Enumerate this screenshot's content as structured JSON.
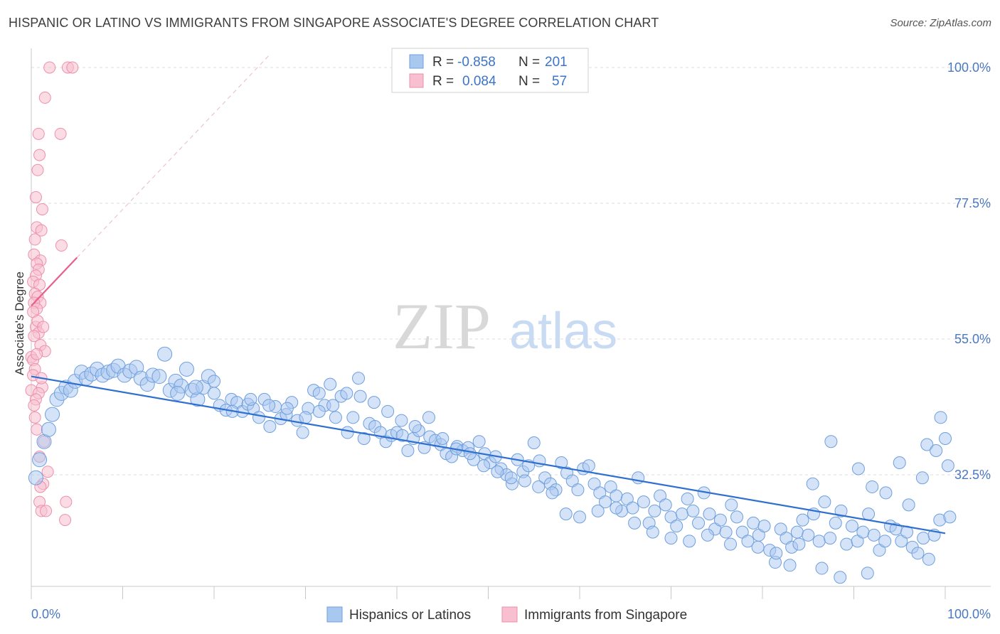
{
  "title": "HISPANIC OR LATINO VS IMMIGRANTS FROM SINGAPORE ASSOCIATE'S DEGREE CORRELATION CHART",
  "source": "Source: ZipAtlas.com",
  "watermark": {
    "zip": "ZIP",
    "atlas": "atlas"
  },
  "colors": {
    "blue_fill": "#a9c8f0",
    "blue_stroke": "#6f9fde",
    "blue_line": "#2f6fd0",
    "pink_fill": "#f7bfd0",
    "pink_stroke": "#ee8fab",
    "pink_line": "#e8608a",
    "grid": "#dcdcdc",
    "tick_label": "#4a78c2"
  },
  "legend": {
    "rows": [
      {
        "r_label": "R =",
        "r_value": "-0.858",
        "n_label": "N =",
        "n_value": "201"
      },
      {
        "r_label": "R =",
        "r_value": "0.084",
        "n_label": "N =",
        "n_value": "57"
      }
    ]
  },
  "chart_data": {
    "type": "scatter",
    "ylabel": "Associate's Degree",
    "xlim": [
      0,
      100
    ],
    "ylim": [
      14,
      102
    ],
    "x_tick_labels": {
      "left": "0.0%",
      "right": "100.0%"
    },
    "y_ticks": [
      {
        "value": 100,
        "label": "100.0%"
      },
      {
        "value": 77.5,
        "label": "77.5%"
      },
      {
        "value": 55,
        "label": "55.0%"
      },
      {
        "value": 32.5,
        "label": "32.5%"
      }
    ],
    "grid": true,
    "legend_position": "top-center",
    "series": [
      {
        "name": "Hispanics or Latinos",
        "color": "#a9c8f0",
        "trend": {
          "x": [
            0,
            100
          ],
          "y": [
            48.8,
            22.8
          ]
        },
        "points": [
          [
            0.5,
            32.0
          ],
          [
            0.9,
            35.0
          ],
          [
            1.4,
            38.0
          ],
          [
            1.9,
            40.0
          ],
          [
            2.3,
            42.5
          ],
          [
            2.8,
            45.0
          ],
          [
            3.3,
            46.0
          ],
          [
            3.8,
            47.0
          ],
          [
            4.3,
            46.5
          ],
          [
            4.8,
            48.0
          ],
          [
            5.5,
            49.5
          ],
          [
            6.0,
            48.5
          ],
          [
            6.6,
            49.2
          ],
          [
            7.2,
            50.0
          ],
          [
            7.8,
            49.0
          ],
          [
            8.4,
            49.5
          ],
          [
            9.0,
            49.8
          ],
          [
            9.5,
            50.5
          ],
          [
            10.2,
            49.0
          ],
          [
            10.8,
            49.7
          ],
          [
            11.5,
            50.3
          ],
          [
            12.0,
            48.5
          ],
          [
            12.7,
            47.5
          ],
          [
            13.3,
            49.0
          ],
          [
            14.0,
            48.8
          ],
          [
            14.6,
            52.5
          ],
          [
            15.2,
            46.5
          ],
          [
            15.8,
            48.0
          ],
          [
            16.4,
            47.2
          ],
          [
            17.0,
            50.0
          ],
          [
            17.6,
            46.5
          ],
          [
            18.2,
            45.0
          ],
          [
            18.8,
            47.0
          ],
          [
            19.4,
            48.8
          ],
          [
            20.0,
            48.0
          ],
          [
            20.6,
            44.0
          ],
          [
            21.3,
            43.2
          ],
          [
            21.9,
            45.0
          ],
          [
            22.5,
            44.5
          ],
          [
            23.1,
            43.0
          ],
          [
            23.7,
            44.2
          ],
          [
            24.3,
            43.5
          ],
          [
            24.9,
            42.0
          ],
          [
            25.5,
            45.0
          ],
          [
            26.1,
            40.5
          ],
          [
            26.7,
            43.8
          ],
          [
            27.3,
            41.8
          ],
          [
            27.9,
            42.5
          ],
          [
            28.5,
            44.5
          ],
          [
            29.1,
            41.5
          ],
          [
            29.7,
            39.5
          ],
          [
            30.3,
            43.5
          ],
          [
            30.9,
            46.5
          ],
          [
            31.5,
            46.0
          ],
          [
            32.1,
            44.0
          ],
          [
            32.7,
            47.5
          ],
          [
            33.3,
            42.0
          ],
          [
            33.9,
            45.5
          ],
          [
            34.6,
            39.5
          ],
          [
            35.2,
            42.0
          ],
          [
            35.8,
            48.5
          ],
          [
            36.4,
            38.5
          ],
          [
            37.0,
            41.0
          ],
          [
            37.6,
            40.5
          ],
          [
            38.2,
            39.5
          ],
          [
            38.8,
            38.0
          ],
          [
            39.4,
            39.0
          ],
          [
            40.0,
            39.5
          ],
          [
            40.6,
            39.0
          ],
          [
            41.2,
            36.5
          ],
          [
            41.8,
            38.5
          ],
          [
            42.4,
            39.8
          ],
          [
            43.0,
            37.0
          ],
          [
            43.6,
            38.8
          ],
          [
            44.2,
            38.2
          ],
          [
            44.8,
            37.5
          ],
          [
            45.4,
            36.0
          ],
          [
            46.0,
            35.5
          ],
          [
            46.6,
            37.2
          ],
          [
            47.2,
            36.5
          ],
          [
            47.8,
            37.0
          ],
          [
            48.4,
            35.0
          ],
          [
            49.0,
            38.0
          ],
          [
            49.6,
            36.0
          ],
          [
            50.2,
            34.5
          ],
          [
            50.8,
            35.5
          ],
          [
            51.4,
            33.5
          ],
          [
            52.0,
            32.5
          ],
          [
            52.6,
            31.0
          ],
          [
            53.2,
            35.0
          ],
          [
            53.8,
            33.0
          ],
          [
            54.4,
            34.0
          ],
          [
            55.0,
            37.8
          ],
          [
            55.6,
            34.8
          ],
          [
            56.2,
            32.0
          ],
          [
            56.8,
            31.0
          ],
          [
            57.4,
            30.0
          ],
          [
            58.0,
            34.5
          ],
          [
            58.6,
            32.8
          ],
          [
            59.2,
            31.5
          ],
          [
            59.8,
            30.0
          ],
          [
            60.4,
            33.5
          ],
          [
            61.0,
            34.0
          ],
          [
            61.6,
            31.0
          ],
          [
            62.2,
            29.5
          ],
          [
            62.8,
            28.0
          ],
          [
            63.4,
            30.5
          ],
          [
            64.0,
            29.0
          ],
          [
            64.6,
            26.5
          ],
          [
            65.2,
            28.5
          ],
          [
            65.8,
            27.0
          ],
          [
            66.4,
            32.0
          ],
          [
            67.0,
            28.0
          ],
          [
            67.6,
            24.5
          ],
          [
            68.2,
            26.5
          ],
          [
            68.8,
            29.0
          ],
          [
            69.4,
            27.5
          ],
          [
            70.0,
            25.5
          ],
          [
            70.6,
            24.0
          ],
          [
            71.2,
            26.0
          ],
          [
            71.8,
            28.5
          ],
          [
            72.4,
            26.5
          ],
          [
            73.0,
            24.5
          ],
          [
            73.6,
            29.5
          ],
          [
            74.2,
            26.0
          ],
          [
            74.8,
            23.5
          ],
          [
            75.4,
            25.0
          ],
          [
            76.0,
            23.0
          ],
          [
            76.6,
            27.5
          ],
          [
            77.2,
            25.5
          ],
          [
            77.8,
            23.0
          ],
          [
            78.4,
            21.5
          ],
          [
            79.0,
            24.5
          ],
          [
            79.6,
            22.5
          ],
          [
            80.2,
            24.0
          ],
          [
            80.8,
            20.0
          ],
          [
            81.4,
            18.0
          ],
          [
            82.0,
            23.5
          ],
          [
            82.6,
            22.0
          ],
          [
            83.2,
            20.5
          ],
          [
            83.8,
            23.0
          ],
          [
            84.4,
            25.0
          ],
          [
            85.0,
            22.5
          ],
          [
            85.6,
            26.0
          ],
          [
            86.2,
            21.5
          ],
          [
            86.8,
            28.0
          ],
          [
            87.4,
            22.0
          ],
          [
            88.0,
            24.5
          ],
          [
            88.6,
            26.5
          ],
          [
            89.2,
            21.0
          ],
          [
            89.8,
            24.0
          ],
          [
            90.4,
            21.5
          ],
          [
            91.0,
            23.0
          ],
          [
            91.6,
            26.0
          ],
          [
            92.2,
            22.5
          ],
          [
            92.8,
            20.0
          ],
          [
            93.4,
            21.5
          ],
          [
            94.0,
            24.0
          ],
          [
            94.6,
            23.5
          ],
          [
            95.2,
            21.5
          ],
          [
            95.8,
            23.0
          ],
          [
            96.4,
            20.5
          ],
          [
            97.0,
            19.5
          ],
          [
            97.6,
            22.0
          ],
          [
            98.2,
            18.5
          ],
          [
            98.8,
            22.5
          ],
          [
            99.4,
            25.0
          ],
          [
            85.5,
            31.0
          ],
          [
            87.5,
            38.0
          ],
          [
            90.5,
            33.5
          ],
          [
            92.0,
            30.5
          ],
          [
            93.5,
            29.5
          ],
          [
            95.0,
            34.5
          ],
          [
            96.0,
            27.5
          ],
          [
            97.5,
            32.0
          ],
          [
            98.0,
            37.5
          ],
          [
            99.0,
            36.5
          ],
          [
            99.5,
            42.0
          ],
          [
            100.0,
            38.5
          ],
          [
            100.3,
            34.0
          ],
          [
            100.5,
            25.5
          ],
          [
            86.5,
            17.0
          ],
          [
            88.5,
            15.5
          ],
          [
            91.5,
            16.2
          ],
          [
            84.0,
            21.0
          ],
          [
            83.0,
            17.5
          ],
          [
            81.5,
            19.5
          ],
          [
            79.5,
            20.5
          ],
          [
            76.5,
            21.0
          ],
          [
            74.0,
            22.5
          ],
          [
            72.0,
            21.5
          ],
          [
            70.0,
            22.0
          ],
          [
            68.0,
            23.0
          ],
          [
            66.0,
            24.5
          ],
          [
            64.0,
            27.0
          ],
          [
            62.0,
            26.5
          ],
          [
            60.0,
            25.5
          ],
          [
            58.5,
            26.0
          ],
          [
            57.0,
            29.5
          ],
          [
            55.5,
            30.5
          ],
          [
            54.0,
            31.5
          ],
          [
            52.5,
            32.0
          ],
          [
            51.0,
            33.0
          ],
          [
            49.5,
            34.0
          ],
          [
            48.0,
            36.0
          ],
          [
            46.5,
            36.8
          ],
          [
            45.0,
            38.5
          ],
          [
            43.5,
            42.0
          ],
          [
            42.0,
            40.5
          ],
          [
            40.5,
            41.5
          ],
          [
            39.0,
            43.0
          ],
          [
            37.5,
            44.5
          ],
          [
            36.0,
            45.5
          ],
          [
            34.5,
            46.0
          ],
          [
            33.0,
            44.0
          ],
          [
            31.5,
            43.0
          ],
          [
            30.0,
            42.0
          ],
          [
            28.0,
            43.5
          ],
          [
            26.0,
            44.0
          ],
          [
            24.0,
            45.0
          ],
          [
            22.0,
            43.0
          ],
          [
            20.0,
            46.0
          ],
          [
            18.0,
            47.0
          ],
          [
            16.0,
            46.0
          ]
        ]
      },
      {
        "name": "Immigrants from Singapore",
        "color": "#f7bfd0",
        "trend": {
          "x": [
            0,
            5
          ],
          "y": [
            60.5,
            68.5
          ]
        },
        "points": [
          [
            2.0,
            100.0
          ],
          [
            4.0,
            100.0
          ],
          [
            4.5,
            100.0
          ],
          [
            1.5,
            95.0
          ],
          [
            0.8,
            89.0
          ],
          [
            3.2,
            89.0
          ],
          [
            0.9,
            85.5
          ],
          [
            0.7,
            83.0
          ],
          [
            0.5,
            78.5
          ],
          [
            1.2,
            76.5
          ],
          [
            0.6,
            73.5
          ],
          [
            1.1,
            73.0
          ],
          [
            0.4,
            71.5
          ],
          [
            3.3,
            70.5
          ],
          [
            0.3,
            69.0
          ],
          [
            1.0,
            68.0
          ],
          [
            0.6,
            67.5
          ],
          [
            0.8,
            66.5
          ],
          [
            0.5,
            65.5
          ],
          [
            0.2,
            64.5
          ],
          [
            0.9,
            64.0
          ],
          [
            0.4,
            62.5
          ],
          [
            0.7,
            62.0
          ],
          [
            1.0,
            61.0
          ],
          [
            0.3,
            61.0
          ],
          [
            0.6,
            60.0
          ],
          [
            0.2,
            59.5
          ],
          [
            0.5,
            57.0
          ],
          [
            0.8,
            56.0
          ],
          [
            0.3,
            55.5
          ],
          [
            1.0,
            54.0
          ],
          [
            1.5,
            53.0
          ],
          [
            0.0,
            52.0
          ],
          [
            0.2,
            51.5
          ],
          [
            0.4,
            50.0
          ],
          [
            1.2,
            47.0
          ],
          [
            0.0,
            46.5
          ],
          [
            0.8,
            46.0
          ],
          [
            0.5,
            45.0
          ],
          [
            0.6,
            40.0
          ],
          [
            1.4,
            38.0
          ],
          [
            1.8,
            33.0
          ],
          [
            1.3,
            31.0
          ],
          [
            0.9,
            28.0
          ],
          [
            3.8,
            28.0
          ],
          [
            1.1,
            26.5
          ],
          [
            1.6,
            26.5
          ],
          [
            3.7,
            25.0
          ],
          [
            0.3,
            44.0
          ],
          [
            0.7,
            58.0
          ],
          [
            1.3,
            57.0
          ],
          [
            0.2,
            49.0
          ],
          [
            0.9,
            35.5
          ],
          [
            0.4,
            42.0
          ],
          [
            1.0,
            30.5
          ],
          [
            0.6,
            52.5
          ],
          [
            1.1,
            48.5
          ]
        ]
      }
    ]
  },
  "bottom_legend": [
    {
      "label": "Hispanics or Latinos"
    },
    {
      "label": "Immigrants from Singapore"
    }
  ]
}
